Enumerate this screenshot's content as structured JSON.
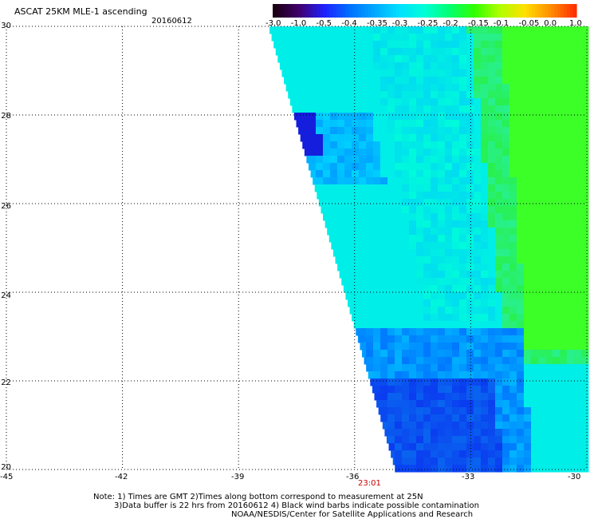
{
  "title": "ASCAT 25KM MLE-1 ascending",
  "date": "20160612",
  "colorbar": {
    "labels": [
      "-3.0",
      "-1.0",
      "-0.5",
      "-0.4",
      "-0.35",
      "-0.3",
      "-0.25",
      "-0.2",
      "-0.15",
      "-0.1",
      "-0.05",
      "0.0",
      "1.0"
    ]
  },
  "axes": {
    "x_ticks": [
      "-45",
      "-42",
      "-39",
      "-36",
      "-33",
      "-30"
    ],
    "y_ticks": [
      "30",
      "28",
      "26",
      "24",
      "22",
      "20"
    ],
    "lon_range": [
      -45,
      -30
    ],
    "lat_range": [
      20,
      30
    ]
  },
  "pass_time": "23:01",
  "notes": {
    "line1": "Note: 1) Times are GMT 2)Times along bottom correspond to measurement at 25N",
    "line2": "3)Data buffer is 22 hrs from 20160612 4) Black wind barbs indicate possible contamination",
    "line3": "NOAA/NESDIS/Center for Satellite Applications and Research"
  },
  "colors": {
    "background": "#ffffff",
    "pass_time": "#cc0000",
    "grid": "#000000"
  }
}
